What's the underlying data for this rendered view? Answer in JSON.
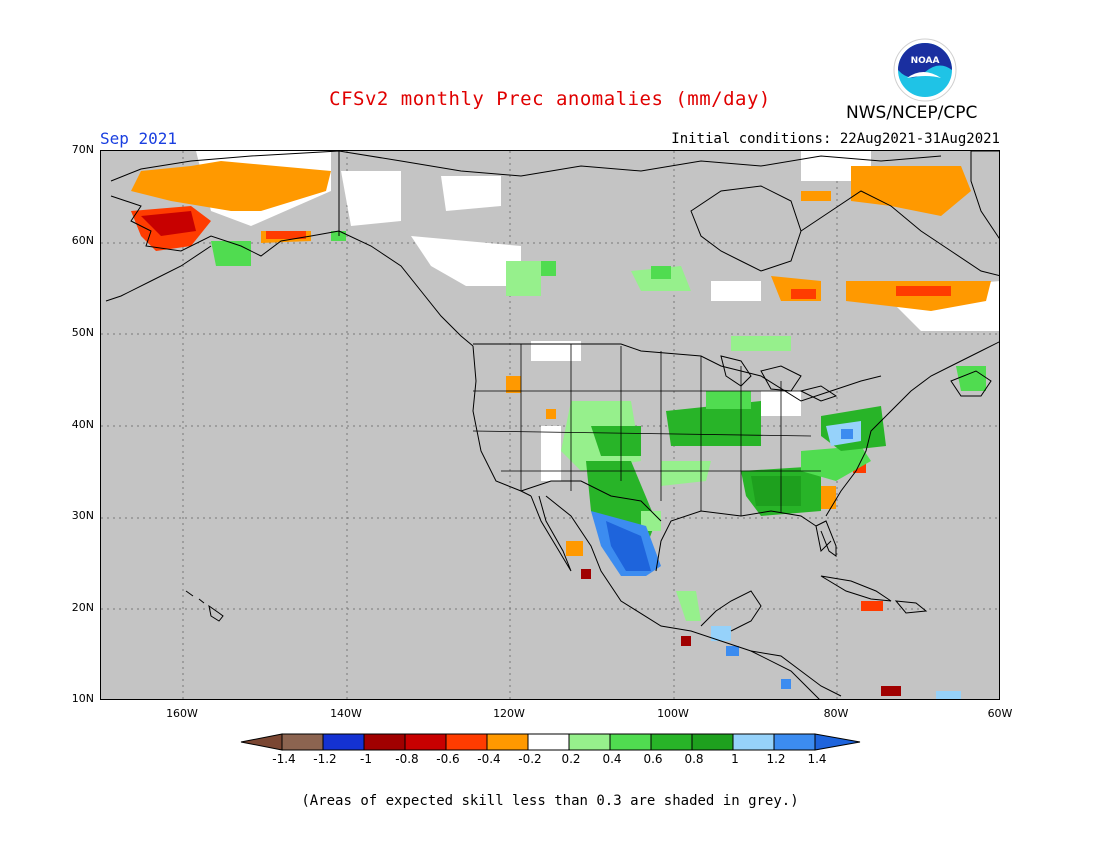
{
  "header": {
    "title": "CFSv2 monthly Prec anomalies (mm/day)",
    "org": "NWS/NCEP/CPC",
    "month": "Sep 2021",
    "init": "Initial conditions: 22Aug2021-31Aug2021",
    "logo_text": "NOAA"
  },
  "map": {
    "lat_labels": [
      "70N",
      "60N",
      "50N",
      "40N",
      "30N",
      "20N",
      "10N"
    ],
    "lon_labels": [
      "160W",
      "140W",
      "120W",
      "100W",
      "80W",
      "60W"
    ],
    "lat_range": [
      10,
      70
    ],
    "lon_range": [
      -170,
      -60
    ],
    "land_color": "#c4c4c4"
  },
  "colorbar": {
    "labels": [
      "-1.4",
      "-1.2",
      "-1",
      "-0.8",
      "-0.6",
      "-0.4",
      "-0.2",
      "0.2",
      "0.4",
      "0.6",
      "0.8",
      "1",
      "1.2",
      "1.4"
    ],
    "colors": [
      "#7a4632",
      "#8c6450",
      "#1432d2",
      "#a00000",
      "#c80000",
      "#ff3c00",
      "#ff9900",
      "#ffffff",
      "#96f08c",
      "#50dc50",
      "#28b428",
      "#1ea01e",
      "#96d2fa",
      "#3c8cf0",
      "#1e64dc"
    ]
  },
  "note": "(Areas of expected skill less than 0.3 are shaded in grey.)"
}
